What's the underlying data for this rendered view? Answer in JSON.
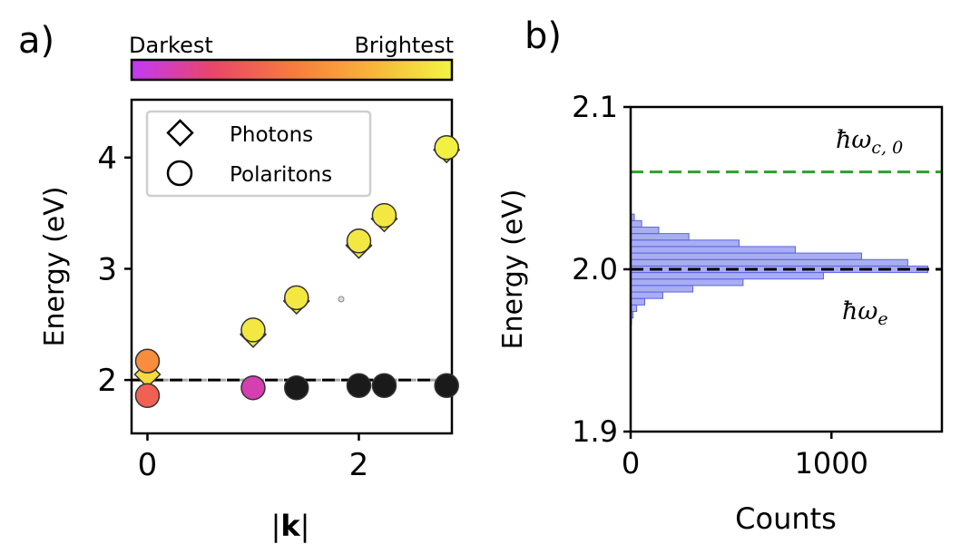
{
  "panel_a": {
    "label": "a)",
    "colorbar": {
      "left_label": "Darkest",
      "right_label": "Brightest"
    },
    "legend": {
      "items": [
        {
          "marker": "diamond",
          "label": "Photons"
        },
        {
          "marker": "circle",
          "label": "Polaritons"
        }
      ]
    }
  },
  "panel_b": {
    "label": "b)",
    "annotations": {
      "cavity": "ħω",
      "cavity_sub": "c, 0",
      "emitter": "ħω",
      "emitter_sub": "e"
    }
  },
  "colors": {
    "colormap": [
      "#c23af5",
      "#e8456a",
      "#f77a3e",
      "#f8b43a",
      "#f2f544"
    ],
    "cavity_line": "#2ca02c",
    "emitter_line": "#000000",
    "histogram_fill": "#8c93ee",
    "histogram_edge": "#5a64e6",
    "marker_edge": "#333333"
  },
  "chart_data": [
    {
      "type": "scatter",
      "xlabel": "|k|",
      "ylabel": "Energy (eV)",
      "xlim": [
        -0.15,
        2.88
      ],
      "ylim": [
        1.52,
        4.52
      ],
      "xticks": [
        0,
        2
      ],
      "yticks": [
        2,
        3,
        4
      ],
      "reference_line": {
        "y": 2.0,
        "style": "dashed",
        "color": "black"
      },
      "legend_position": "top-left",
      "series": [
        {
          "name": "Photons",
          "marker": "diamond",
          "points": [
            {
              "x": 0.0,
              "y": 2.05,
              "brightness": 0.9
            },
            {
              "x": 1.0,
              "y": 2.41,
              "brightness": 0.97
            },
            {
              "x": 1.41,
              "y": 2.71,
              "brightness": 0.97
            },
            {
              "x": 2.0,
              "y": 3.21,
              "brightness": 0.97
            },
            {
              "x": 2.24,
              "y": 3.45,
              "brightness": 0.97
            },
            {
              "x": 2.83,
              "y": 4.07,
              "brightness": 0.97
            }
          ]
        },
        {
          "name": "Polaritons",
          "marker": "circle",
          "points": [
            {
              "x": 0.0,
              "y": 2.17,
              "brightness": 0.58
            },
            {
              "x": 0.0,
              "y": 1.86,
              "brightness": 0.38
            },
            {
              "x": 1.0,
              "y": 2.45,
              "brightness": 0.95
            },
            {
              "x": 1.0,
              "y": 1.93,
              "brightness": 0.12
            },
            {
              "x": 1.41,
              "y": 2.74,
              "brightness": 0.95
            },
            {
              "x": 1.41,
              "y": 1.93,
              "brightness": 0.04
            },
            {
              "x": 2.0,
              "y": 3.25,
              "brightness": 0.95
            },
            {
              "x": 2.0,
              "y": 1.95,
              "brightness": 0.0
            },
            {
              "x": 2.24,
              "y": 3.48,
              "brightness": 0.95
            },
            {
              "x": 2.24,
              "y": 1.95,
              "brightness": 0.0
            },
            {
              "x": 2.83,
              "y": 4.09,
              "brightness": 0.98
            },
            {
              "x": 2.83,
              "y": 1.95,
              "brightness": 0.0
            }
          ]
        }
      ]
    },
    {
      "type": "histogram",
      "orientation": "horizontal",
      "xlabel": "Counts",
      "ylabel": "Energy (eV)",
      "xlim": [
        0,
        1550
      ],
      "ylim": [
        1.9,
        2.1
      ],
      "xticks": [
        0,
        1000
      ],
      "yticks": [
        1.9,
        2.0,
        2.1
      ],
      "reference_lines": [
        {
          "y": 2.06,
          "label": "ħω_c,0",
          "style": "dashed",
          "color": "green"
        },
        {
          "y": 2.0,
          "label": "ħω_e",
          "style": "dashed",
          "color": "black"
        }
      ],
      "bins": [
        {
          "y0": 1.966,
          "y1": 1.97,
          "count": 4
        },
        {
          "y0": 1.97,
          "y1": 1.974,
          "count": 12
        },
        {
          "y0": 1.974,
          "y1": 1.978,
          "count": 30
        },
        {
          "y0": 1.978,
          "y1": 1.982,
          "count": 70
        },
        {
          "y0": 1.982,
          "y1": 1.986,
          "count": 160
        },
        {
          "y0": 1.986,
          "y1": 1.99,
          "count": 310
        },
        {
          "y0": 1.99,
          "y1": 1.994,
          "count": 560
        },
        {
          "y0": 1.994,
          "y1": 1.998,
          "count": 960
        },
        {
          "y0": 1.998,
          "y1": 2.002,
          "count": 1480
        },
        {
          "y0": 2.002,
          "y1": 2.006,
          "count": 1380
        },
        {
          "y0": 2.006,
          "y1": 2.01,
          "count": 1150
        },
        {
          "y0": 2.01,
          "y1": 2.014,
          "count": 820
        },
        {
          "y0": 2.014,
          "y1": 2.018,
          "count": 540
        },
        {
          "y0": 2.018,
          "y1": 2.022,
          "count": 290
        },
        {
          "y0": 2.022,
          "y1": 2.026,
          "count": 140
        },
        {
          "y0": 2.026,
          "y1": 2.03,
          "count": 55
        },
        {
          "y0": 2.03,
          "y1": 2.034,
          "count": 18
        }
      ]
    }
  ]
}
